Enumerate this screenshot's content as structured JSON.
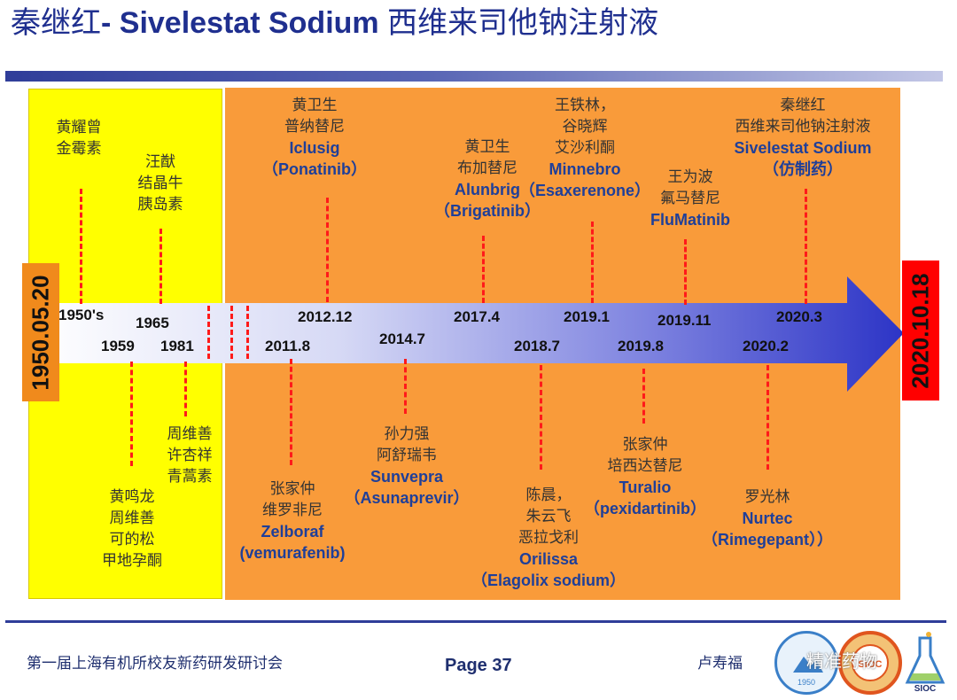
{
  "slide": {
    "title_cn": "秦继红",
    "title_en": "- Sivelestat Sodium ",
    "title_cn2": "西维来司他钠注射液"
  },
  "start_date": "1950.05.20",
  "end_date": "2020.10.18",
  "years": {
    "y1950s": "1950's",
    "y1959": "1959",
    "y1965": "1965",
    "y1981": "1981",
    "y2011_8": "2011.8",
    "y2012_12": "2012.12",
    "y2014_7": "2014.7",
    "y2017_4": "2017.4",
    "y2018_7": "2018.7",
    "y2019_1": "2019.1",
    "y2019_8": "2019.8",
    "y2019_11": "2019.11",
    "y2020_2": "2020.2",
    "y2020_3": "2020.3"
  },
  "events": {
    "e1950s": {
      "l1": "黄耀曾",
      "l2": "金霉素"
    },
    "e1965": {
      "l1": "汪猷",
      "l2": "结晶牛",
      "l3": "胰岛素"
    },
    "e1959": {
      "l1": "黄鸣龙",
      "l2": "周维善",
      "l3": "可的松",
      "l4": "甲地孕酮"
    },
    "e1981": {
      "l1": "周维善",
      "l2": "许杏祥",
      "l3": "青蒿素"
    },
    "e2012": {
      "l1": "黄卫生",
      "l2": "普纳替尼",
      "en": "Iclusig",
      "l4": "（Ponatinib）"
    },
    "e2011": {
      "l1": "张家仲",
      "l2": "维罗非尼",
      "en": "Zelboraf",
      "l4": "(vemurafenib)"
    },
    "e2014": {
      "l1": "孙力强",
      "l2": "阿舒瑞韦",
      "en": "Sunvepra",
      "l4": "（Asunaprevir）"
    },
    "e2017": {
      "l1": "黄卫生",
      "l2": "布加替尼",
      "en": "Alunbrig",
      "l4": "（Brigatinib）"
    },
    "e2018": {
      "l1": "陈晨，",
      "l2": "朱云飞",
      "l3": "恶拉戈利",
      "en": "Orilissa",
      "l5": "（Elagolix sodium）"
    },
    "e2019_1": {
      "l1": "王铁林，",
      "l2": "谷晓辉",
      "l3": "艾沙利酮",
      "en": "Minnebro",
      "l5": "（Esaxerenone）"
    },
    "e2019_8": {
      "l1": "张家仲",
      "l2": "培西达替尼",
      "en": "Turalio",
      "l4": "（pexidartinib）"
    },
    "e2019_11": {
      "l1": "王为波",
      "l2": "氟马替尼",
      "en": "FluMatinib"
    },
    "e2020_2": {
      "l1": "罗光林",
      "en": "Nurtec",
      "l3": "（Rimegepant））"
    },
    "e2020_3": {
      "l1": "秦继红",
      "l2": "西维来司他钠注射液",
      "en": "Sivelestat Sodium",
      "l4": "（仿制药）"
    }
  },
  "footer": {
    "conference": "第一届上海有机所校友新药研发研讨会",
    "page": "Page 37",
    "author": "卢寿福",
    "watermark": "精准药物",
    "logo_year": "1950",
    "logo_text": "SIOC"
  },
  "colors": {
    "yellow_panel": "#ffff00",
    "orange_panel": "#f99b3a",
    "start_box": "#f08a1c",
    "end_box": "#ff0000",
    "dash": "#ff1a1a",
    "drug_name": "#1f3f99"
  }
}
